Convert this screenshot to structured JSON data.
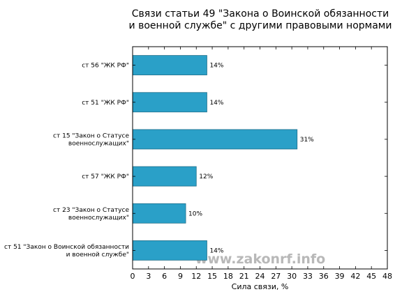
{
  "watermark": "www.zakonrf.info",
  "chart_data": {
    "type": "bar",
    "orientation": "horizontal",
    "title": "Связи статьи 49 \"Закона о Воинской обязанности\nи военной службе\" с другими правовыми нормами",
    "xlabel": "Сила связи, %",
    "ylabel": "",
    "xlim": [
      0,
      48
    ],
    "xticks": [
      0,
      3,
      6,
      9,
      12,
      15,
      18,
      21,
      24,
      27,
      30,
      33,
      36,
      39,
      42,
      45,
      48
    ],
    "grid": false,
    "bar_color": "#2aa0c8",
    "categories": [
      "ст 56 \"ЖК РФ\"",
      "ст 51 \"ЖК РФ\"",
      "ст 15 \"Закон о Статусе\nвоеннослужащих\"",
      "ст 57 \"ЖК РФ\"",
      "ст 23 \"Закон о Статусе\nвоеннослужащих\"",
      "ст 51 \"Закон о Воинской обязанности\nи военной службе\""
    ],
    "values": [
      14,
      14,
      31,
      12,
      10,
      14
    ],
    "value_labels": [
      "14%",
      "14%",
      "31%",
      "12%",
      "10%",
      "14%"
    ]
  }
}
